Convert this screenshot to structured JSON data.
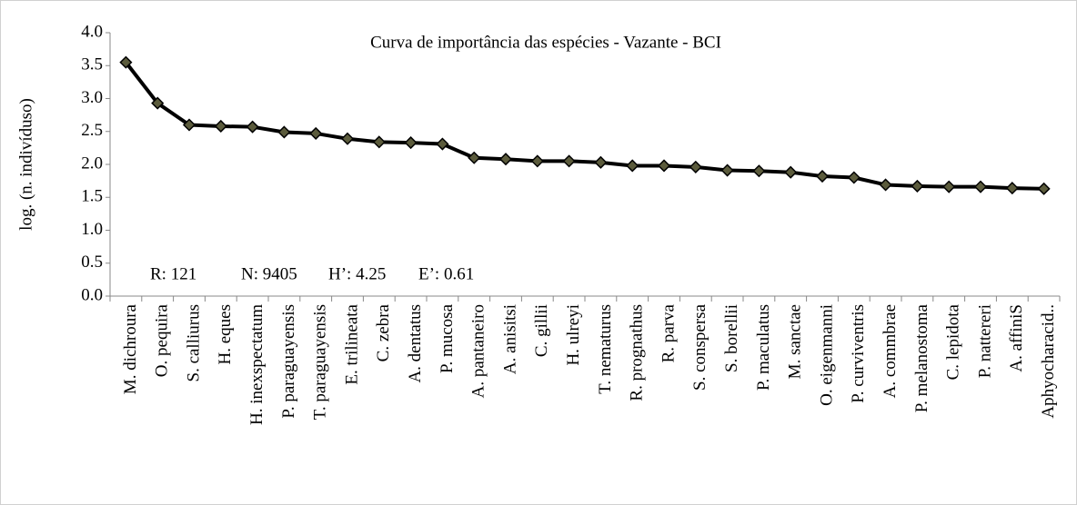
{
  "chart_data": {
    "type": "line",
    "title": "Curva de importância das espécies - Vazante - BCI",
    "y_label": "log. (n. indivíduso)",
    "annotations": [
      "R: 121",
      "N: 9405",
      "H’: 4.25",
      "E’: 0.61"
    ],
    "categories": [
      "M. dichroura",
      "O. pequira",
      "S. calliurus",
      "H. eques",
      "H. inexspectatum",
      "P. paraguayensis",
      "T. paraguayensis",
      "E. trilineata",
      "C. zebra",
      "A. dentatus",
      "P. mucosa",
      "A. pantaneiro",
      "A. anisitsi",
      "C. gillii",
      "H. ulreyi",
      "T. nematurus",
      "R. prognathus",
      "R. parva",
      "S. conspersa",
      "S. borellii",
      "P. maculatus",
      "M. sanctae",
      "O. eigenmanni",
      "P. curviventris",
      "A. commbrae",
      "P. melanostoma",
      "C. lepidota",
      "P. nattereri",
      "A. affiniS",
      "Aphyocharacid.."
    ],
    "series": [
      {
        "name": "log",
        "color": "#000000",
        "marker_color": "#5b5b3c",
        "values": [
          3.55,
          2.93,
          2.6,
          2.58,
          2.57,
          2.49,
          2.47,
          2.39,
          2.34,
          2.33,
          2.31,
          2.1,
          2.08,
          2.05,
          2.05,
          2.03,
          1.98,
          1.98,
          1.96,
          1.91,
          1.9,
          1.88,
          1.82,
          1.8,
          1.69,
          1.67,
          1.66,
          1.66,
          1.64,
          1.63
        ]
      }
    ],
    "ylim": [
      0,
      4
    ],
    "yticks": [
      {
        "value": 0,
        "label": "0.0"
      },
      {
        "value": 0.5,
        "label": "0.5"
      },
      {
        "value": 1,
        "label": "1.0"
      },
      {
        "value": 1.5,
        "label": "1.5"
      },
      {
        "value": 2,
        "label": "2.0"
      },
      {
        "value": 2.5,
        "label": "2.5"
      },
      {
        "value": 3,
        "label": "3.0"
      },
      {
        "value": 3.5,
        "label": "3.5"
      },
      {
        "value": 4,
        "label": "4.0"
      }
    ],
    "grid": false
  }
}
